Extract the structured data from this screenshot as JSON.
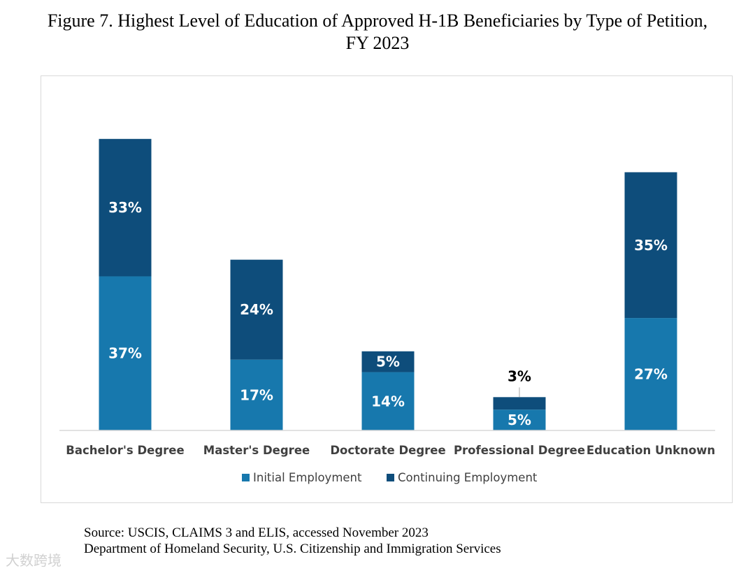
{
  "figure": {
    "title_line1": "Figure 7. Highest Level of Education of Approved H-1B Beneficiaries by Type of Petition,",
    "title_line2": "FY 2023"
  },
  "source": {
    "line1": "Source: USCIS, CLAIMS 3 and ELIS, accessed November 2023",
    "line2": "Department of Homeland Security, U.S. Citizenship and Immigration Services"
  },
  "watermark": {
    "text": "大数跨境"
  },
  "colors": {
    "initial": "#1778ad",
    "continuing": "#0e4d7b",
    "axis": "#d9d9d9",
    "label_inside": "#ffffff",
    "label_outside": "#000000"
  },
  "chart_data": {
    "type": "bar",
    "stacked": true,
    "title": "Highest Level of Education of Approved H-1B Beneficiaries by Type of Petition, FY 2023",
    "categories": [
      "Bachelor's Degree",
      "Master's Degree",
      "Doctorate Degree",
      "Professional Degree",
      "Education Unknown"
    ],
    "series": [
      {
        "name": "Initial Employment",
        "values": [
          37,
          17,
          14,
          5,
          27
        ],
        "labels": [
          "37%",
          "17%",
          "14%",
          "5%",
          "27%"
        ]
      },
      {
        "name": "Continuing Employment",
        "values": [
          33,
          24,
          5,
          3,
          35
        ],
        "labels": [
          "33%",
          "24%",
          "5%",
          "3%",
          "35%"
        ]
      }
    ],
    "xlabel": "",
    "ylabel": "",
    "ylim": [
      0,
      70
    ],
    "grid": false,
    "legend_position": "bottom"
  }
}
